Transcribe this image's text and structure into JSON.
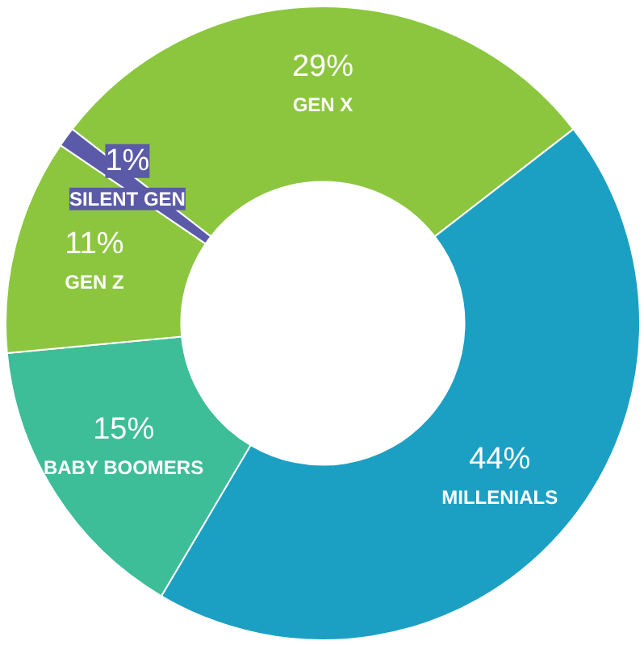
{
  "chart_data": {
    "type": "donut",
    "categories": [
      "GEN X",
      "MILLENIALS",
      "BABY BOOMERS",
      "GEN Z",
      "SILENT GEN"
    ],
    "values": [
      29,
      44,
      15,
      11,
      1
    ],
    "colors": [
      "#8cc63f",
      "#1ba0c4",
      "#3dbd98",
      "#8cc63f",
      "#5a5aa8"
    ],
    "value_labels": [
      "29%",
      "44%",
      "15%",
      "11%",
      "1%"
    ]
  }
}
